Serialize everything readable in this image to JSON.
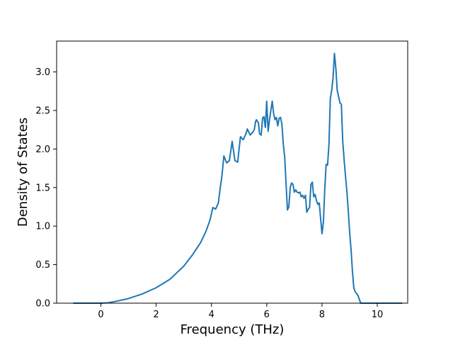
{
  "chart_data": {
    "type": "line",
    "title": "",
    "xlabel": "Frequency (THz)",
    "ylabel": "Density of States",
    "xlim": [
      -1.6,
      11.1
    ],
    "ylim": [
      0.0,
      3.4
    ],
    "xticks": [
      0,
      2,
      4,
      6,
      8,
      10
    ],
    "xtick_labels": [
      "0",
      "2",
      "4",
      "6",
      "8",
      "10"
    ],
    "yticks": [
      0.0,
      0.5,
      1.0,
      1.5,
      2.0,
      2.5,
      3.0
    ],
    "ytick_labels": [
      "0.0",
      "0.5",
      "1.0",
      "1.5",
      "2.0",
      "2.5",
      "3.0"
    ],
    "grid": false,
    "legend": "none",
    "series": [
      {
        "color": "#1f77b4",
        "x": [
          -1.0,
          -0.5,
          0.0,
          0.25,
          0.5,
          1.0,
          1.5,
          2.0,
          2.5,
          3.0,
          3.3,
          3.6,
          3.8,
          3.95,
          4.05,
          4.15,
          4.25,
          4.32,
          4.38,
          4.45,
          4.55,
          4.65,
          4.75,
          4.85,
          4.95,
          5.0,
          5.05,
          5.15,
          5.25,
          5.3,
          5.4,
          5.5,
          5.55,
          5.6,
          5.63,
          5.66,
          5.7,
          5.74,
          5.8,
          5.85,
          5.9,
          5.95,
          6.0,
          6.05,
          6.1,
          6.15,
          6.2,
          6.25,
          6.3,
          6.35,
          6.4,
          6.45,
          6.5,
          6.55,
          6.6,
          6.65,
          6.7,
          6.75,
          6.8,
          6.85,
          6.9,
          6.95,
          7.0,
          7.05,
          7.1,
          7.15,
          7.2,
          7.25,
          7.3,
          7.35,
          7.4,
          7.45,
          7.5,
          7.55,
          7.6,
          7.65,
          7.7,
          7.75,
          7.8,
          7.85,
          7.9,
          7.95,
          8.0,
          8.05,
          8.1,
          8.15,
          8.2,
          8.25,
          8.3,
          8.35,
          8.4,
          8.45,
          8.5,
          8.55,
          8.6,
          8.65,
          8.7,
          8.75,
          8.8,
          8.85,
          8.9,
          8.95,
          9.0,
          9.05,
          9.1,
          9.15,
          9.2,
          9.3,
          9.4,
          9.5,
          9.6,
          9.7,
          9.8,
          9.9,
          10.0,
          10.5,
          10.9
        ],
        "y": [
          0.0,
          0.0,
          0.0,
          0.005,
          0.02,
          0.06,
          0.12,
          0.2,
          0.31,
          0.48,
          0.62,
          0.78,
          0.93,
          1.08,
          1.24,
          1.22,
          1.3,
          1.5,
          1.65,
          1.91,
          1.82,
          1.85,
          2.1,
          1.85,
          1.83,
          2.0,
          2.16,
          2.12,
          2.2,
          2.26,
          2.18,
          2.22,
          2.25,
          2.36,
          2.38,
          2.36,
          2.34,
          2.2,
          2.18,
          2.4,
          2.42,
          2.28,
          2.62,
          2.23,
          2.38,
          2.5,
          2.62,
          2.46,
          2.38,
          2.41,
          2.3,
          2.4,
          2.41,
          2.32,
          2.06,
          1.9,
          1.55,
          1.21,
          1.25,
          1.5,
          1.56,
          1.54,
          1.44,
          1.47,
          1.44,
          1.43,
          1.44,
          1.38,
          1.4,
          1.36,
          1.4,
          1.18,
          1.22,
          1.24,
          1.54,
          1.57,
          1.38,
          1.41,
          1.33,
          1.28,
          1.3,
          1.1,
          0.9,
          1.05,
          1.48,
          1.8,
          1.79,
          2.05,
          2.65,
          2.76,
          2.92,
          3.24,
          3.05,
          2.76,
          2.68,
          2.6,
          2.58,
          2.1,
          1.86,
          1.65,
          1.45,
          1.2,
          0.92,
          0.7,
          0.42,
          0.2,
          0.15,
          0.1,
          0.0,
          0.0,
          0.0,
          0.0,
          0.0,
          0.0,
          0.0,
          0.0,
          0.0
        ]
      }
    ]
  }
}
